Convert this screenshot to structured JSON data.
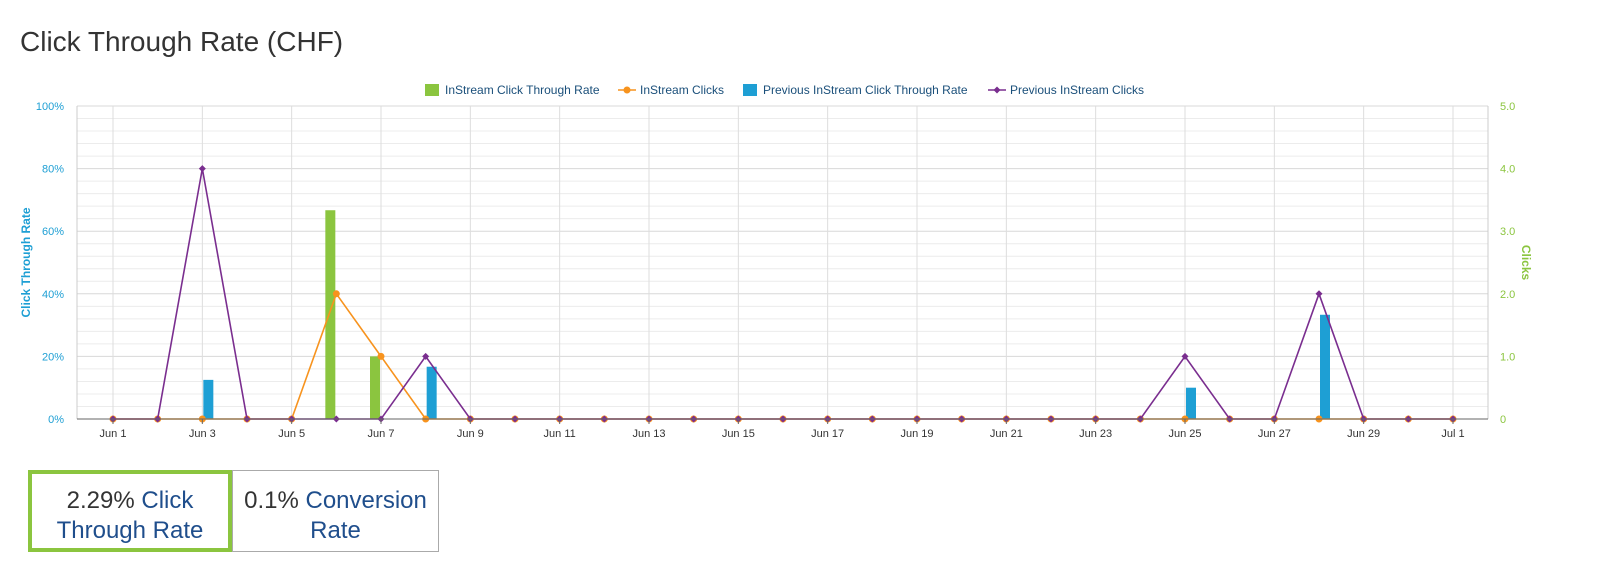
{
  "page": {
    "title": "Click Through Rate (CHF)"
  },
  "chart_data": {
    "type": "bar",
    "x": [
      "Jun 1",
      "Jun 2",
      "Jun 3",
      "Jun 4",
      "Jun 5",
      "Jun 6",
      "Jun 7",
      "Jun 8",
      "Jun 9",
      "Jun 10",
      "Jun 11",
      "Jun 12",
      "Jun 13",
      "Jun 14",
      "Jun 15",
      "Jun 16",
      "Jun 17",
      "Jun 18",
      "Jun 19",
      "Jun 20",
      "Jun 21",
      "Jun 22",
      "Jun 23",
      "Jun 24",
      "Jun 25",
      "Jun 26",
      "Jun 27",
      "Jun 28",
      "Jun 29",
      "Jun 30",
      "Jul 1"
    ],
    "x_tick_labels": [
      "Jun 1",
      "Jun 3",
      "Jun 5",
      "Jun 7",
      "Jun 9",
      "Jun 11",
      "Jun 13",
      "Jun 15",
      "Jun 17",
      "Jun 19",
      "Jun 21",
      "Jun 23",
      "Jun 25",
      "Jun 27",
      "Jun 29",
      "Jul 1"
    ],
    "ylabel": "Click Through Rate",
    "y2label": "Clicks",
    "ylim": [
      0,
      100
    ],
    "y2lim": [
      0,
      5
    ],
    "y_ticks": [
      0,
      20,
      40,
      60,
      80,
      100
    ],
    "y_tick_labels": [
      "0%",
      "20%",
      "40%",
      "60%",
      "80%",
      "100%"
    ],
    "y2_ticks": [
      0,
      1,
      2,
      3,
      4,
      5
    ],
    "y2_tick_labels": [
      "0",
      "1.0",
      "2.0",
      "3.0",
      "4.0",
      "5.0"
    ],
    "grid": true,
    "legend_position": "top-center",
    "series": [
      {
        "name": "InStream Click Through Rate",
        "type": "bar",
        "axis": "left",
        "color": "#8bc53f",
        "values": [
          0,
          0,
          0,
          0,
          0,
          66.7,
          20,
          0,
          0,
          0,
          0,
          0,
          0,
          0,
          0,
          0,
          0,
          0,
          0,
          0,
          0,
          0,
          0,
          0,
          0,
          0,
          0,
          0,
          0,
          0,
          0
        ]
      },
      {
        "name": "InStream Clicks",
        "type": "line",
        "axis": "right",
        "color": "#f7931e",
        "marker": "circle",
        "values": [
          0,
          0,
          0,
          0,
          0,
          2,
          1,
          0,
          0,
          0,
          0,
          0,
          0,
          0,
          0,
          0,
          0,
          0,
          0,
          0,
          0,
          0,
          0,
          0,
          0,
          0,
          0,
          0,
          0,
          0,
          0
        ]
      },
      {
        "name": "Previous InStream Click Through Rate",
        "type": "bar",
        "axis": "left",
        "color": "#1e9fd4",
        "values": [
          0,
          0,
          12.5,
          0,
          0,
          0,
          0,
          16.7,
          0,
          0,
          0,
          0,
          0,
          0,
          0,
          0,
          0,
          0,
          0,
          0,
          0,
          0,
          0,
          0,
          10,
          0,
          0,
          33.3,
          0,
          0,
          0
        ]
      },
      {
        "name": "Previous InStream Clicks",
        "type": "line",
        "axis": "right",
        "color": "#7a2e8f",
        "marker": "diamond",
        "values": [
          0,
          0,
          4,
          0,
          0,
          0,
          0,
          1,
          0,
          0,
          0,
          0,
          0,
          0,
          0,
          0,
          0,
          0,
          0,
          0,
          0,
          0,
          0,
          0,
          1,
          0,
          0,
          2,
          0,
          0,
          0
        ]
      }
    ]
  },
  "metrics": [
    {
      "value": "2.29%",
      "label": "Click Through Rate",
      "active": true
    },
    {
      "value": "0.1%",
      "label": "Conversion Rate",
      "active": false
    }
  ],
  "colors": {
    "left_axis": "#1e9fd4",
    "right_axis": "#8bc53f",
    "active_border": "#8bc53f"
  }
}
